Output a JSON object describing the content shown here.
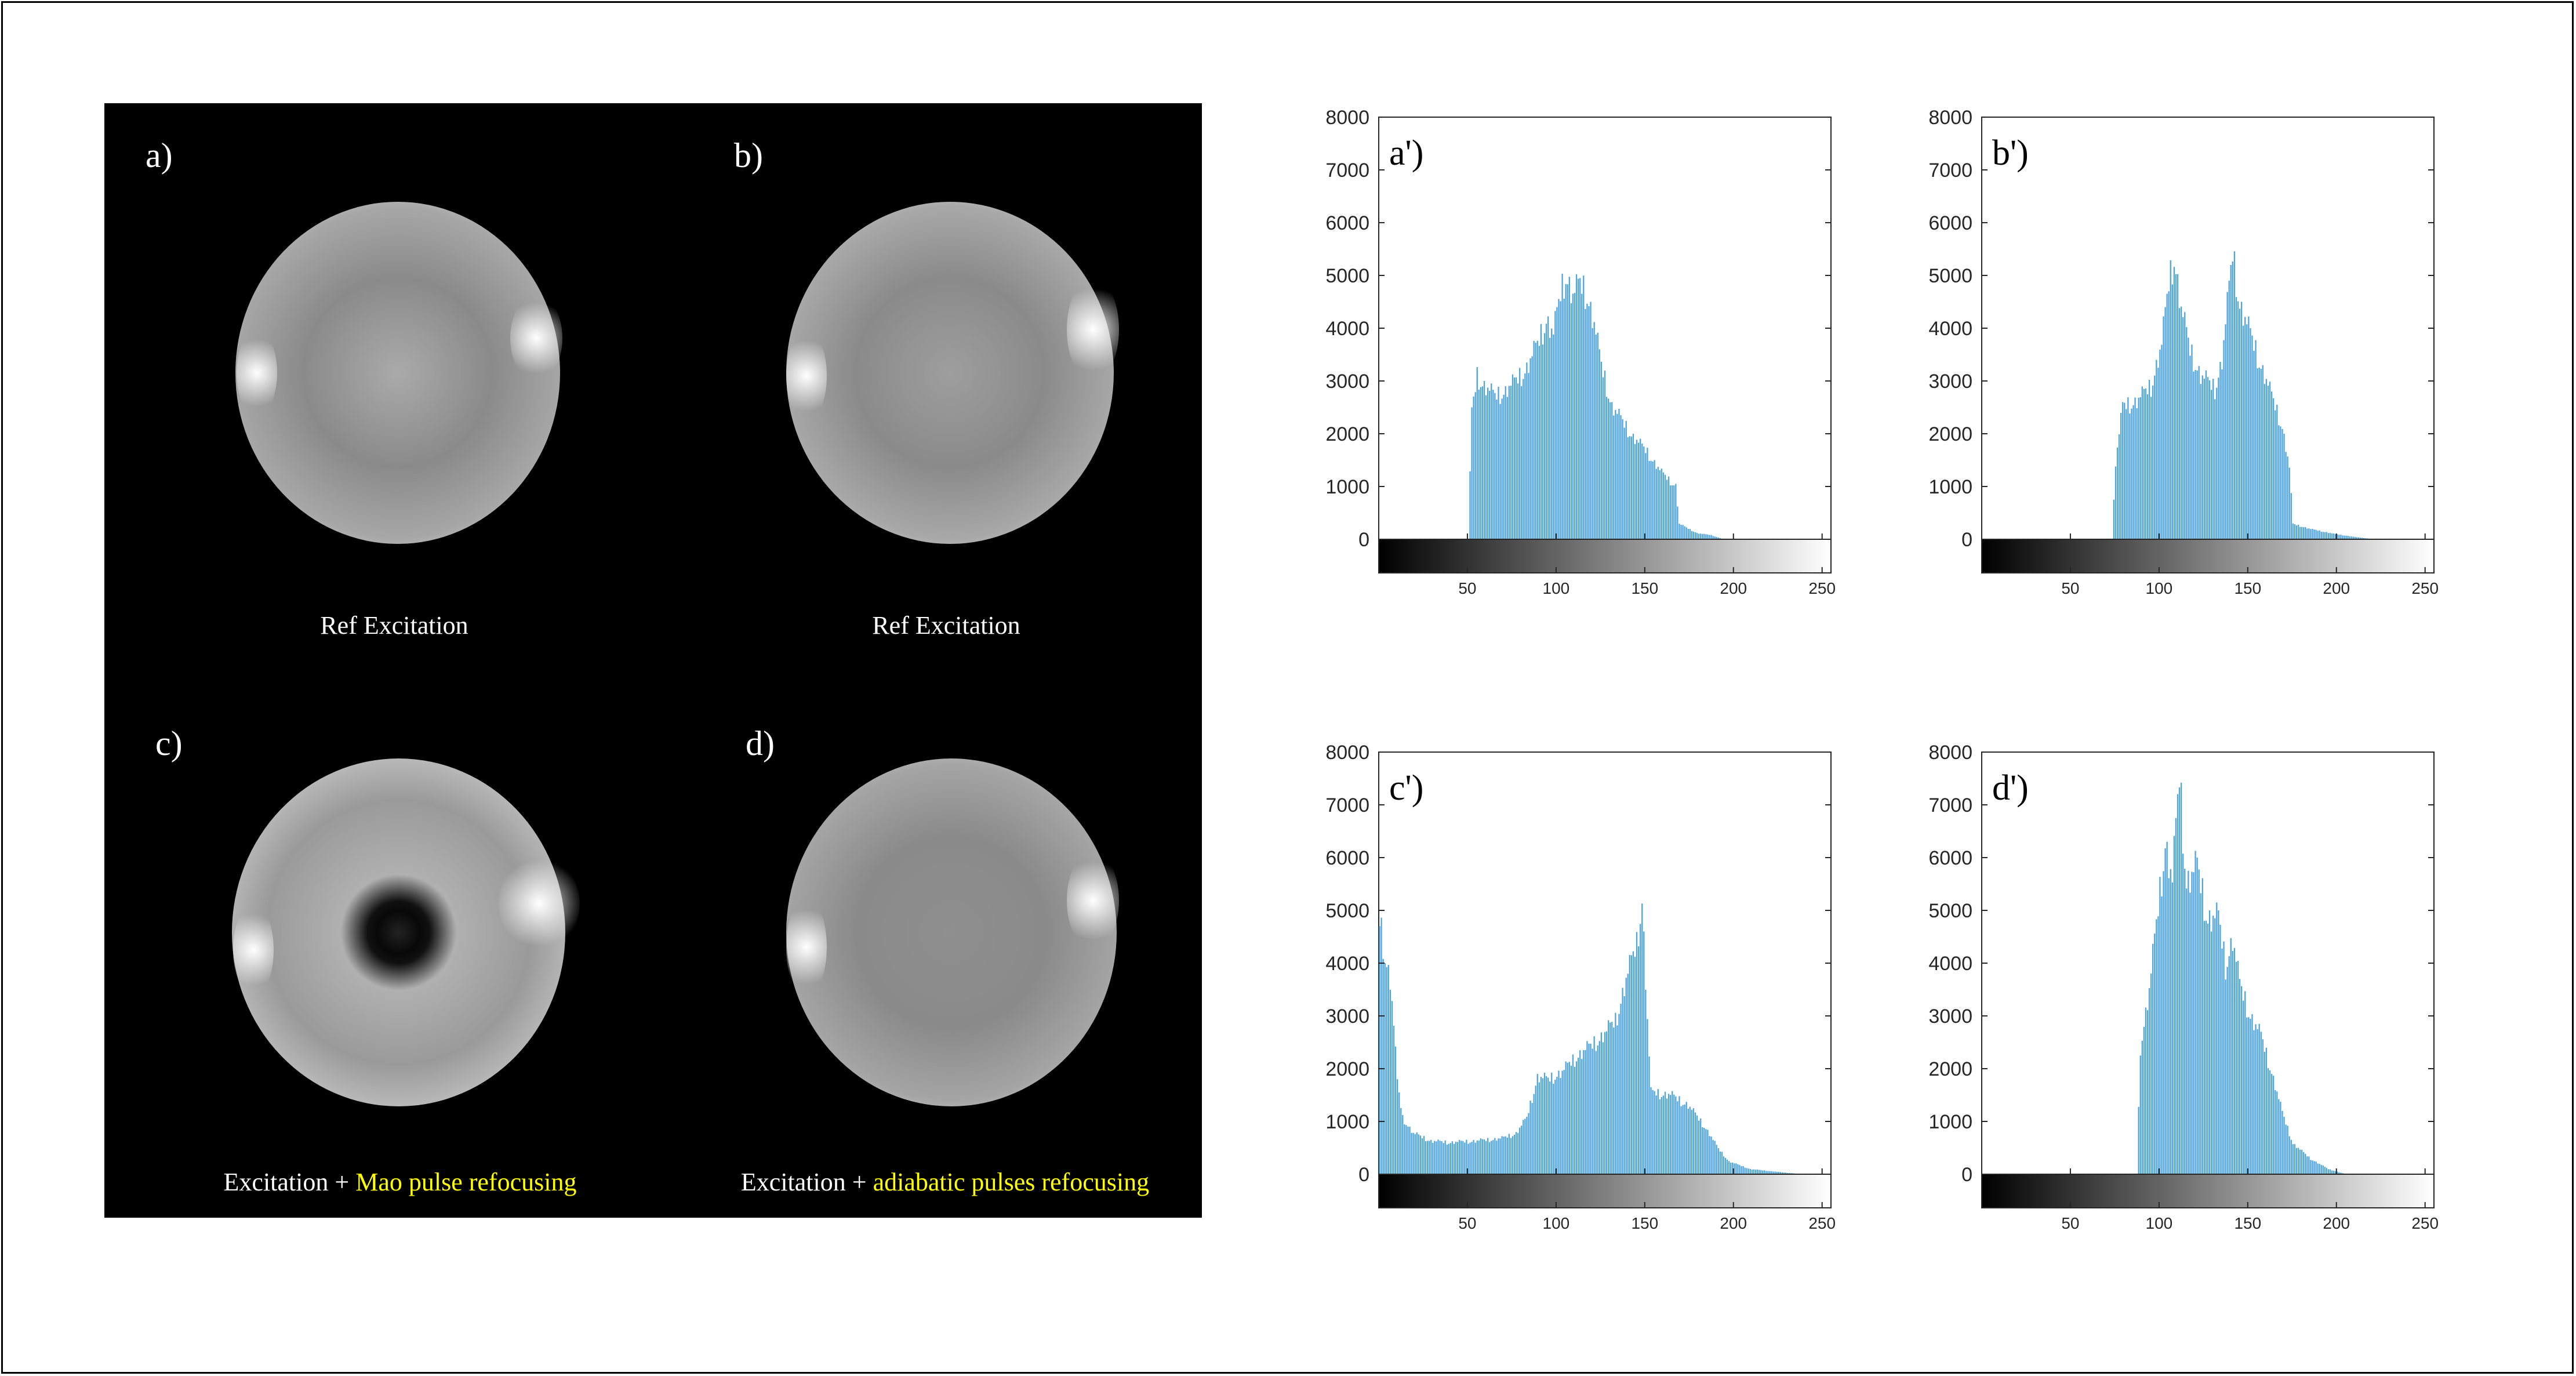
{
  "colors": {
    "bar": "#4da3db",
    "background": "#ffffff",
    "panel": "#000000",
    "highlight": "#ffff00"
  },
  "mri_images": [
    {
      "label": "a)",
      "caption": "Ref Excitation",
      "caption_highlight": ""
    },
    {
      "label": "b)",
      "caption": "Ref Excitation",
      "caption_highlight": ""
    },
    {
      "label": "c)",
      "caption": "Excitation + ",
      "caption_highlight": "Mao pulse refocusing"
    },
    {
      "label": "d)",
      "caption": "Excitation + ",
      "caption_highlight": "adiabatic pulses refocusing"
    }
  ],
  "chart_data": [
    {
      "type": "bar",
      "label": "a')",
      "xlim": [
        0,
        255
      ],
      "ylim": [
        0,
        8000
      ],
      "yticks": [
        0,
        1000,
        2000,
        3000,
        4000,
        5000,
        6000,
        7000,
        8000
      ],
      "xticks": [
        50,
        100,
        150,
        200,
        250
      ],
      "points": [
        [
          0,
          0
        ],
        [
          51,
          0
        ],
        [
          53,
          2500
        ],
        [
          56,
          3200
        ],
        [
          60,
          3000
        ],
        [
          66,
          2800
        ],
        [
          72,
          2900
        ],
        [
          78,
          3100
        ],
        [
          84,
          3350
        ],
        [
          90,
          3800
        ],
        [
          95,
          4300
        ],
        [
          99,
          4000
        ],
        [
          103,
          4800
        ],
        [
          106,
          5200
        ],
        [
          110,
          4750
        ],
        [
          114,
          5000
        ],
        [
          118,
          4800
        ],
        [
          122,
          4200
        ],
        [
          126,
          3400
        ],
        [
          132,
          2600
        ],
        [
          138,
          2300
        ],
        [
          144,
          2000
        ],
        [
          152,
          1700
        ],
        [
          160,
          1300
        ],
        [
          166,
          1100
        ],
        [
          168,
          1050
        ],
        [
          170,
          300
        ],
        [
          180,
          120
        ],
        [
          188,
          80
        ],
        [
          195,
          0
        ],
        [
          255,
          0
        ]
      ]
    },
    {
      "type": "bar",
      "label": "b')",
      "xlim": [
        0,
        255
      ],
      "ylim": [
        0,
        8000
      ],
      "yticks": [
        0,
        1000,
        2000,
        3000,
        4000,
        5000,
        6000,
        7000,
        8000
      ],
      "xticks": [
        50,
        100,
        150,
        200,
        250
      ],
      "points": [
        [
          0,
          0
        ],
        [
          74,
          0
        ],
        [
          76,
          1500
        ],
        [
          80,
          2600
        ],
        [
          88,
          2700
        ],
        [
          96,
          3000
        ],
        [
          102,
          3800
        ],
        [
          106,
          5000
        ],
        [
          109,
          5550
        ],
        [
          113,
          4500
        ],
        [
          118,
          3700
        ],
        [
          124,
          3200
        ],
        [
          132,
          2950
        ],
        [
          136,
          3500
        ],
        [
          140,
          4900
        ],
        [
          142,
          5600
        ],
        [
          146,
          4600
        ],
        [
          152,
          4000
        ],
        [
          158,
          3400
        ],
        [
          164,
          2800
        ],
        [
          170,
          2200
        ],
        [
          174,
          1400
        ],
        [
          176,
          300
        ],
        [
          186,
          200
        ],
        [
          200,
          100
        ],
        [
          212,
          40
        ],
        [
          222,
          0
        ],
        [
          255,
          0
        ]
      ]
    },
    {
      "type": "bar",
      "label": "c')",
      "xlim": [
        0,
        255
      ],
      "ylim": [
        0,
        8000
      ],
      "yticks": [
        0,
        1000,
        2000,
        3000,
        4000,
        5000,
        6000,
        7000,
        8000
      ],
      "xticks": [
        50,
        100,
        150,
        200,
        250
      ],
      "points": [
        [
          0,
          0
        ],
        [
          1,
          5000
        ],
        [
          4,
          4300
        ],
        [
          7,
          3800
        ],
        [
          9,
          2900
        ],
        [
          11,
          1800
        ],
        [
          14,
          1100
        ],
        [
          20,
          800
        ],
        [
          30,
          650
        ],
        [
          40,
          620
        ],
        [
          55,
          650
        ],
        [
          70,
          700
        ],
        [
          78,
          800
        ],
        [
          84,
          1100
        ],
        [
          90,
          1900
        ],
        [
          96,
          1850
        ],
        [
          104,
          2000
        ],
        [
          112,
          2300
        ],
        [
          120,
          2500
        ],
        [
          128,
          2750
        ],
        [
          134,
          3000
        ],
        [
          140,
          3800
        ],
        [
          146,
          4500
        ],
        [
          149,
          5400
        ],
        [
          152,
          3000
        ],
        [
          154,
          1600
        ],
        [
          165,
          1550
        ],
        [
          175,
          1350
        ],
        [
          185,
          900
        ],
        [
          192,
          500
        ],
        [
          198,
          250
        ],
        [
          210,
          100
        ],
        [
          230,
          30
        ],
        [
          240,
          0
        ],
        [
          255,
          0
        ]
      ]
    },
    {
      "type": "bar",
      "label": "d')",
      "xlim": [
        0,
        255
      ],
      "ylim": [
        0,
        8000
      ],
      "yticks": [
        0,
        1000,
        2000,
        3000,
        4000,
        5000,
        6000,
        7000,
        8000
      ],
      "xticks": [
        50,
        100,
        150,
        200,
        250
      ],
      "points": [
        [
          0,
          0
        ],
        [
          88,
          0
        ],
        [
          90,
          2500
        ],
        [
          95,
          3600
        ],
        [
          100,
          5200
        ],
        [
          104,
          6500
        ],
        [
          108,
          5700
        ],
        [
          112,
          7800
        ],
        [
          116,
          5700
        ],
        [
          122,
          6000
        ],
        [
          128,
          5000
        ],
        [
          134,
          5000
        ],
        [
          138,
          4100
        ],
        [
          142,
          4600
        ],
        [
          146,
          3700
        ],
        [
          152,
          3100
        ],
        [
          158,
          2700
        ],
        [
          164,
          2000
        ],
        [
          170,
          1200
        ],
        [
          176,
          600
        ],
        [
          186,
          300
        ],
        [
          196,
          100
        ],
        [
          206,
          0
        ],
        [
          255,
          0
        ]
      ]
    }
  ]
}
